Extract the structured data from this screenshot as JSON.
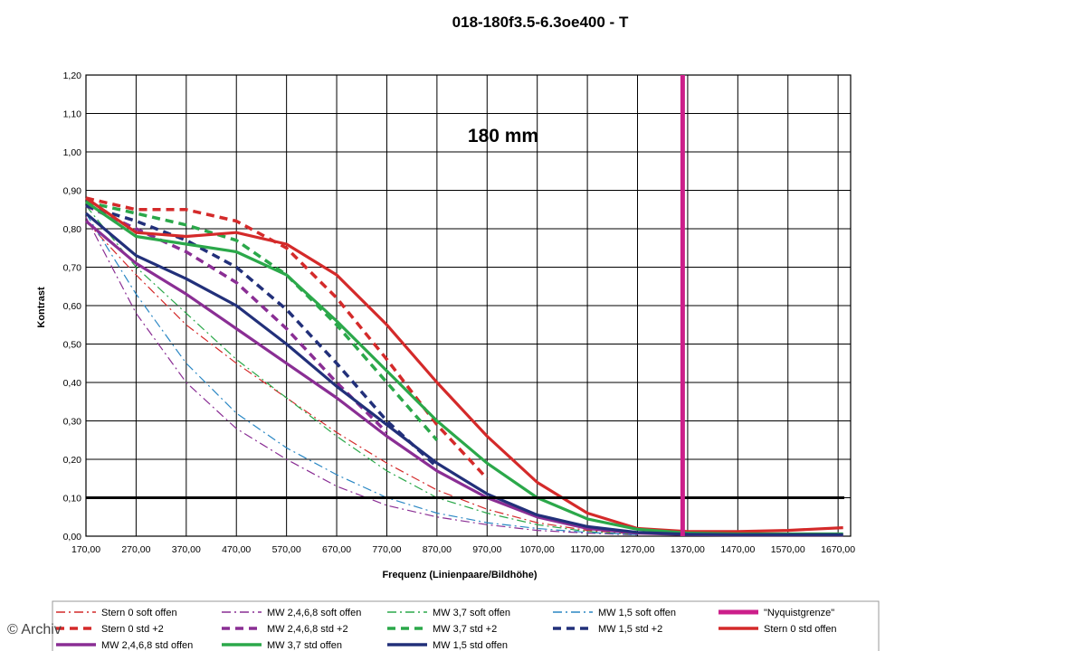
{
  "chart_data": {
    "type": "line",
    "title": "018-180f3.5-6.3oe400 - T",
    "annotation": "180 mm",
    "xlabel": "Frequenz (Linienpaare/Bildhöhe)",
    "ylabel": "Kontrast",
    "xlim": [
      170,
      1695
    ],
    "ylim": [
      0,
      1.2
    ],
    "grid": true,
    "legend_position": "bottom",
    "x_ticks": [
      "170,00",
      "270,00",
      "370,00",
      "470,00",
      "570,00",
      "670,00",
      "770,00",
      "870,00",
      "970,00",
      "1070,00",
      "1170,00",
      "1270,00",
      "1370,00",
      "1470,00",
      "1570,00",
      "1670,00"
    ],
    "y_ticks": [
      "0,00",
      "0,10",
      "0,20",
      "0,30",
      "0,40",
      "0,50",
      "0,60",
      "0,70",
      "0,80",
      "0,90",
      "1,00",
      "1,10",
      "1,20"
    ],
    "threshold_line": {
      "y": 0.1,
      "color": "#000000"
    },
    "nyquist": {
      "name": "\"Nyquistgrenze\"",
      "x": 1360,
      "color": "#cc1f8a"
    },
    "series": [
      {
        "name": "Stern 0 soft offen",
        "color": "#d42a2a",
        "style": "dashdot",
        "x": [
          170,
          270,
          370,
          470,
          570,
          670,
          770,
          870,
          970,
          1070,
          1170,
          1270
        ],
        "y": [
          0.82,
          0.68,
          0.55,
          0.45,
          0.36,
          0.27,
          0.19,
          0.12,
          0.07,
          0.035,
          0.015,
          0.005
        ]
      },
      {
        "name": "MW 2,4,6,8 soft offen",
        "color": "#8a2e94",
        "style": "dashdot",
        "x": [
          170,
          270,
          370,
          470,
          570,
          670,
          770,
          870,
          970,
          1070,
          1170,
          1270
        ],
        "y": [
          0.83,
          0.58,
          0.4,
          0.28,
          0.2,
          0.13,
          0.08,
          0.05,
          0.03,
          0.015,
          0.008,
          0.003
        ]
      },
      {
        "name": "MW 3,7 soft offen",
        "color": "#2ba84a",
        "style": "dashdot",
        "x": [
          170,
          270,
          370,
          470,
          570,
          670,
          770,
          870,
          970,
          1070,
          1170,
          1270
        ],
        "y": [
          0.86,
          0.7,
          0.58,
          0.46,
          0.36,
          0.26,
          0.17,
          0.1,
          0.06,
          0.03,
          0.012,
          0.004
        ]
      },
      {
        "name": "MW 1,5 soft offen",
        "color": "#2a87c4",
        "style": "dashdot",
        "x": [
          170,
          270,
          370,
          470,
          570,
          670,
          770,
          870,
          970,
          1070,
          1170,
          1270
        ],
        "y": [
          0.84,
          0.63,
          0.45,
          0.32,
          0.23,
          0.16,
          0.1,
          0.06,
          0.035,
          0.02,
          0.01,
          0.004
        ]
      },
      {
        "name": "Stern 0 std +2",
        "color": "#d42a2a",
        "style": "dash",
        "x": [
          170,
          270,
          370,
          470,
          570,
          670,
          770,
          870,
          970
        ],
        "y": [
          0.88,
          0.85,
          0.85,
          0.82,
          0.75,
          0.62,
          0.46,
          0.29,
          0.15
        ]
      },
      {
        "name": "MW 2,4,6,8 std +2",
        "color": "#8a2e94",
        "style": "dash",
        "x": [
          170,
          270,
          370,
          470,
          570,
          670,
          770
        ],
        "y": [
          0.86,
          0.8,
          0.74,
          0.66,
          0.54,
          0.4,
          0.27
        ]
      },
      {
        "name": "MW 3,7 std +2",
        "color": "#2ba84a",
        "style": "dash",
        "x": [
          170,
          270,
          370,
          470,
          570,
          670,
          770,
          870
        ],
        "y": [
          0.87,
          0.84,
          0.81,
          0.77,
          0.68,
          0.55,
          0.4,
          0.25
        ]
      },
      {
        "name": "MW 1,5 std +2",
        "color": "#22307a",
        "style": "dash",
        "x": [
          170,
          270,
          370,
          470,
          570,
          670,
          770,
          870
        ],
        "y": [
          0.86,
          0.82,
          0.77,
          0.7,
          0.59,
          0.45,
          0.3,
          0.18
        ]
      },
      {
        "name": "Stern 0 std offen",
        "color": "#d42a2a",
        "style": "solid",
        "x": [
          170,
          270,
          370,
          470,
          570,
          670,
          770,
          870,
          970,
          1070,
          1170,
          1270,
          1370,
          1470,
          1570,
          1680
        ],
        "y": [
          0.88,
          0.79,
          0.78,
          0.79,
          0.76,
          0.68,
          0.55,
          0.4,
          0.26,
          0.14,
          0.06,
          0.02,
          0.012,
          0.012,
          0.015,
          0.022
        ]
      },
      {
        "name": "MW 2,4,6,8 std offen",
        "color": "#8a2e94",
        "style": "solid",
        "x": [
          170,
          270,
          370,
          470,
          570,
          670,
          770,
          870,
          970,
          1070,
          1170,
          1270,
          1370,
          1470,
          1570,
          1680
        ],
        "y": [
          0.82,
          0.71,
          0.63,
          0.54,
          0.45,
          0.36,
          0.26,
          0.17,
          0.1,
          0.05,
          0.02,
          0.008,
          0.004,
          0.003,
          0.003,
          0.003
        ]
      },
      {
        "name": "MW 3,7 std offen",
        "color": "#2ba84a",
        "style": "solid",
        "x": [
          170,
          270,
          370,
          470,
          570,
          670,
          770,
          870,
          970,
          1070,
          1170,
          1270,
          1370,
          1470,
          1570,
          1680
        ],
        "y": [
          0.87,
          0.78,
          0.76,
          0.74,
          0.68,
          0.56,
          0.43,
          0.3,
          0.19,
          0.1,
          0.045,
          0.018,
          0.008,
          0.006,
          0.006,
          0.006
        ]
      },
      {
        "name": "MW 1,5 std offen",
        "color": "#22307a",
        "style": "solid",
        "x": [
          170,
          270,
          370,
          470,
          570,
          670,
          770,
          870,
          970,
          1070,
          1170,
          1270,
          1370,
          1470,
          1570,
          1680
        ],
        "y": [
          0.84,
          0.73,
          0.67,
          0.6,
          0.5,
          0.39,
          0.29,
          0.19,
          0.11,
          0.055,
          0.025,
          0.01,
          0.005,
          0.004,
          0.004,
          0.004
        ]
      }
    ]
  },
  "legend_rows": [
    [
      "Stern 0 soft offen",
      "MW 2,4,6,8 soft offen",
      "MW 3,7 soft offen",
      "MW 1,5 soft offen",
      "\"Nyquistgrenze\""
    ],
    [
      "Stern 0 std +2",
      "MW 2,4,6,8 std +2",
      "MW 3,7 std +2",
      "MW 1,5 std +2",
      "Stern 0 std offen"
    ],
    [
      "MW 2,4,6,8 std offen",
      "MW 3,7 std offen",
      "MW 1,5 std offen"
    ]
  ],
  "copyright": "© Archiv"
}
